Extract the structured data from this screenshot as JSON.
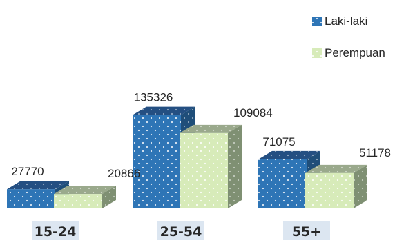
{
  "chart_data": {
    "type": "bar",
    "style": "3d-clustered-column",
    "categories": [
      "15-24",
      "25-54",
      "55+"
    ],
    "series": [
      {
        "name": "Laki-laki",
        "values": [
          27770,
          135326,
          71075
        ],
        "color": "#2e75b6",
        "side_color": "#1f4e79",
        "top_color": "#244f82"
      },
      {
        "name": "Perempuan",
        "values": [
          20866,
          109084,
          51178
        ],
        "color": "#d7ebb9",
        "side_color": "#7f9073",
        "top_color": "#9aa98c"
      }
    ],
    "legend": "top-right",
    "grid": false,
    "title": "",
    "xlabel": "",
    "ylabel": "",
    "category_label_bg": "#dce6f1"
  }
}
